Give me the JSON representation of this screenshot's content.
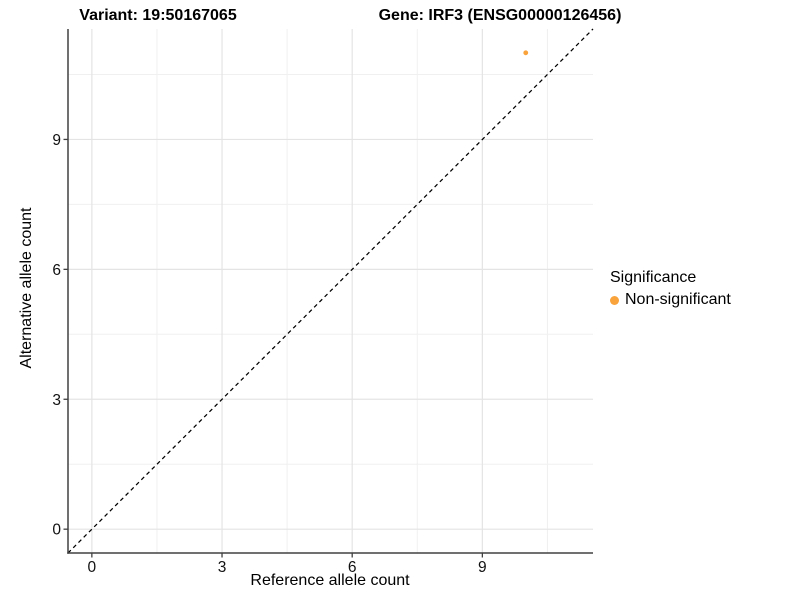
{
  "colors": {
    "point_orange": "#F9A33C",
    "grid_major": "#E4E4E4",
    "grid_minor": "#F0F0F0",
    "axis_line": "#404040",
    "tick_text": "#111111",
    "identity_line": "#000000",
    "background": "#FFFFFF"
  },
  "chart_data": {
    "type": "scatter",
    "title_left": "Variant: 19:50167065",
    "title_right": "Gene: IRF3 (ENSG00000126456)",
    "xlabel": "Reference allele count",
    "ylabel": "Alternative allele count",
    "xlim": [
      -0.55,
      11.55
    ],
    "ylim": [
      -0.55,
      11.55
    ],
    "x_major_ticks": [
      0,
      3,
      6,
      9
    ],
    "y_major_ticks": [
      0,
      3,
      6,
      9
    ],
    "x_minor_ticks": [
      1.5,
      4.5,
      7.5,
      10.5
    ],
    "y_minor_ticks": [
      1.5,
      4.5,
      7.5,
      10.5
    ],
    "grid": true,
    "identity_line": {
      "style": "dashed",
      "from": [
        -0.55,
        -0.55
      ],
      "to": [
        11.55,
        11.55
      ]
    },
    "points": [
      {
        "x": 10,
        "y": 11,
        "series": "Non-significant"
      }
    ],
    "legend": {
      "title": "Significance",
      "position": "right",
      "items": [
        {
          "label": "Non-significant",
          "marker": "dot"
        }
      ]
    }
  }
}
